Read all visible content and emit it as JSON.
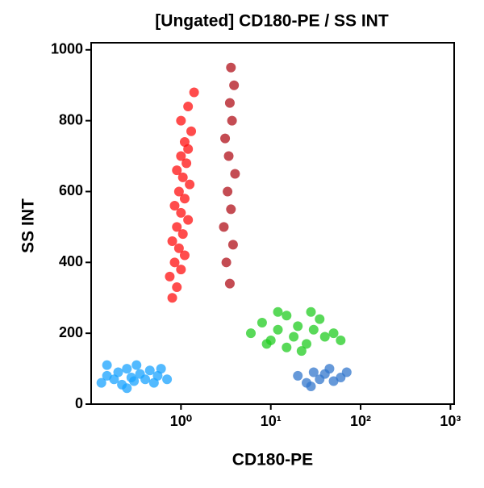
{
  "chart_data": {
    "type": "scatter",
    "title": "[Ungated] CD180-PE / SS INT",
    "x_label": "CD180-PE",
    "y_label": "SS INT",
    "x_scale": "log",
    "xlim": [
      0.1,
      1100
    ],
    "ylim": [
      0,
      1020
    ],
    "xticks": [
      {
        "value": 1,
        "label": "10⁰"
      },
      {
        "value": 10,
        "label": "10¹"
      },
      {
        "value": 100,
        "label": "10²"
      },
      {
        "value": 1000,
        "label": "10³"
      }
    ],
    "yticks": [
      0,
      200,
      400,
      600,
      800,
      1000
    ],
    "series": [
      {
        "color": "#ff1010",
        "x": [
          0.8,
          0.9,
          0.75,
          1.0,
          0.85,
          1.1,
          0.95,
          0.8,
          1.05,
          0.9,
          1.2,
          1.0,
          0.85,
          1.1,
          0.95,
          1.25,
          1.05,
          0.9,
          1.15,
          1.0,
          1.2,
          1.1,
          1.3,
          1.0,
          1.2,
          1.4
        ],
        "y": [
          300,
          330,
          360,
          380,
          400,
          420,
          440,
          460,
          480,
          500,
          520,
          540,
          560,
          580,
          600,
          620,
          640,
          660,
          680,
          700,
          720,
          740,
          770,
          800,
          840,
          880
        ]
      },
      {
        "color": "#b0101a",
        "x": [
          3.5,
          3.2,
          3.8,
          3.0,
          3.6,
          3.3,
          4.0,
          3.4,
          3.1,
          3.7,
          3.5,
          3.9,
          3.6
        ],
        "y": [
          340,
          400,
          450,
          500,
          550,
          600,
          650,
          700,
          750,
          800,
          850,
          900,
          950
        ]
      },
      {
        "color": "#22cc22",
        "x": [
          6,
          8,
          10,
          12,
          15,
          18,
          20,
          25,
          30,
          35,
          15,
          40,
          50,
          12,
          22,
          9,
          28,
          60
        ],
        "y": [
          200,
          230,
          180,
          210,
          250,
          190,
          220,
          170,
          210,
          240,
          160,
          190,
          200,
          260,
          150,
          170,
          260,
          180
        ]
      },
      {
        "color": "#1aa3ff",
        "x": [
          0.13,
          0.15,
          0.18,
          0.2,
          0.22,
          0.25,
          0.28,
          0.3,
          0.32,
          0.35,
          0.4,
          0.45,
          0.5,
          0.55,
          0.6,
          0.7,
          0.15,
          0.25
        ],
        "y": [
          60,
          80,
          70,
          90,
          55,
          100,
          75,
          65,
          110,
          85,
          70,
          95,
          60,
          80,
          100,
          70,
          110,
          45
        ]
      },
      {
        "color": "#3377cc",
        "x": [
          20,
          25,
          30,
          35,
          40,
          50,
          60,
          45,
          28,
          70
        ],
        "y": [
          80,
          60,
          90,
          70,
          85,
          65,
          75,
          100,
          50,
          90
        ]
      }
    ]
  }
}
